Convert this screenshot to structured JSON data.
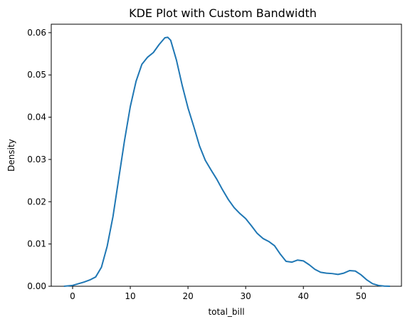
{
  "chart_data": {
    "type": "line",
    "title": "KDE Plot with Custom Bandwidth",
    "xlabel": "total_bill",
    "ylabel": "Density",
    "xlim": [
      -3.7,
      57.0
    ],
    "ylim": [
      0,
      0.062
    ],
    "xticks": [
      0,
      10,
      20,
      30,
      40,
      50
    ],
    "xtick_labels": [
      "0",
      "10",
      "20",
      "30",
      "40",
      "50"
    ],
    "yticks": [
      0.0,
      0.01,
      0.02,
      0.03,
      0.04,
      0.05,
      0.06
    ],
    "ytick_labels": [
      "0.00",
      "0.01",
      "0.02",
      "0.03",
      "0.04",
      "0.05",
      "0.06"
    ],
    "grid": false,
    "line_color": "#1f77b4",
    "series": [
      {
        "x": [
          -1.5,
          0,
          1,
          2,
          3,
          4,
          5,
          6,
          7,
          8,
          9,
          10,
          11,
          12,
          13,
          14,
          15,
          16,
          16.5,
          17,
          18,
          19,
          20,
          21,
          22,
          23,
          24,
          25,
          26,
          27,
          28,
          29,
          30,
          31,
          32,
          33,
          34,
          35,
          36,
          37,
          38,
          39,
          40,
          41,
          42,
          43,
          44,
          45,
          46,
          47,
          48,
          49,
          50,
          51,
          52,
          53,
          54,
          55
        ],
        "y": [
          0.0,
          0.0002,
          0.0006,
          0.001,
          0.0015,
          0.0022,
          0.0045,
          0.0095,
          0.0165,
          0.0255,
          0.0345,
          0.0425,
          0.0485,
          0.0525,
          0.0542,
          0.0553,
          0.0572,
          0.0588,
          0.0589,
          0.0582,
          0.0535,
          0.0475,
          0.0422,
          0.0378,
          0.0332,
          0.0298,
          0.0275,
          0.0253,
          0.0228,
          0.0205,
          0.0186,
          0.0172,
          0.016,
          0.0143,
          0.0125,
          0.0113,
          0.0106,
          0.0096,
          0.0076,
          0.0059,
          0.0057,
          0.0062,
          0.006,
          0.0051,
          0.004,
          0.0033,
          0.0031,
          0.003,
          0.0028,
          0.0031,
          0.0037,
          0.0036,
          0.0027,
          0.0015,
          0.0006,
          0.0002,
          5e-05,
          0.0
        ]
      }
    ]
  }
}
